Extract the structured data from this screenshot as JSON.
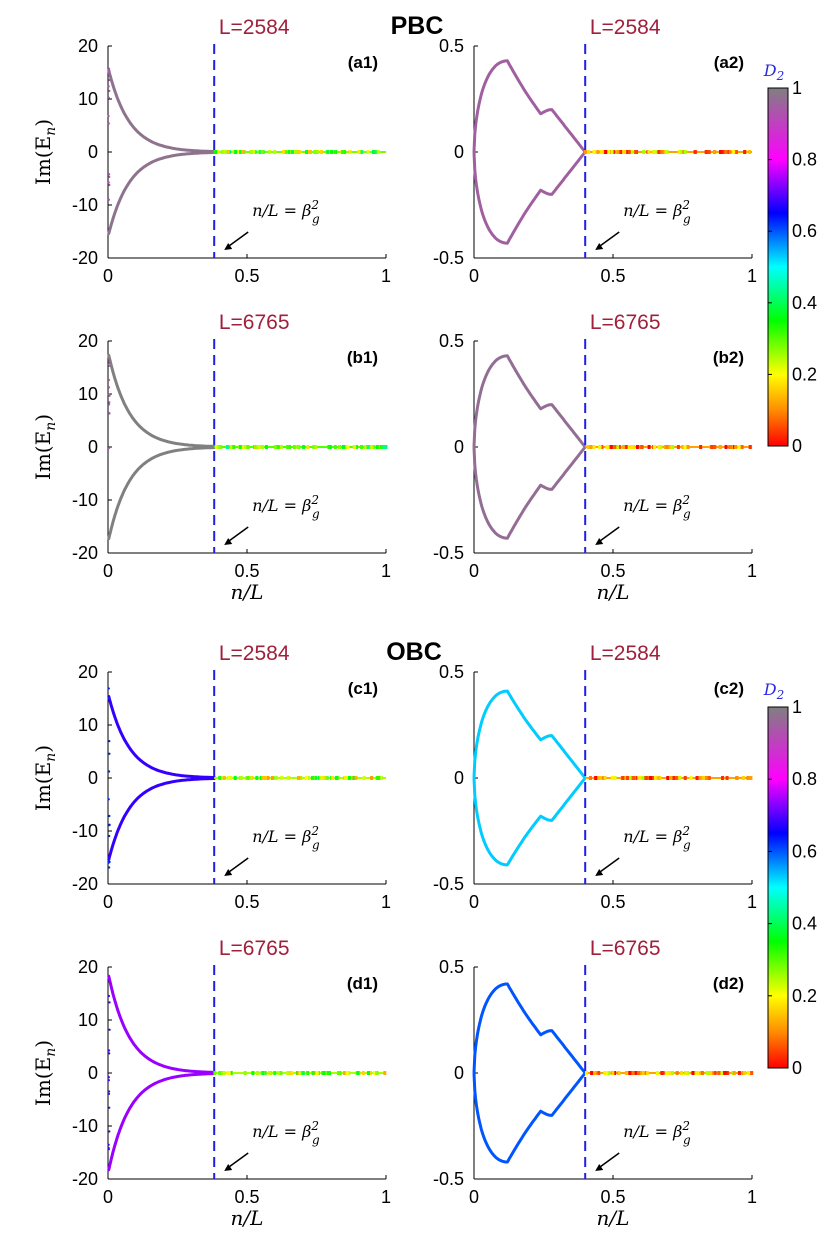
{
  "sections": [
    {
      "id": "pbc",
      "label": "PBC"
    },
    {
      "id": "obc",
      "label": "OBC"
    }
  ],
  "colorbar": {
    "label": "D",
    "label_sub": "2",
    "ticks": [
      "0",
      "0.2",
      "0.4",
      "0.6",
      "0.8",
      "1"
    ],
    "stops": [
      {
        "v": 0.0,
        "color": "#ff0000"
      },
      {
        "v": 0.1,
        "color": "#ff8c00"
      },
      {
        "v": 0.2,
        "color": "#ffff00"
      },
      {
        "v": 0.35,
        "color": "#00ff00"
      },
      {
        "v": 0.5,
        "color": "#00ffff"
      },
      {
        "v": 0.65,
        "color": "#0000ff"
      },
      {
        "v": 0.8,
        "color": "#ff00ff"
      },
      {
        "v": 1.0,
        "color": "#808080"
      }
    ]
  },
  "axis_labels": {
    "y1": "Im(E",
    "y1_sub": "n",
    "y1_close": ")",
    "x": "n/L"
  },
  "annotation": {
    "text": "n/L = β",
    "sup": "2",
    "sub": "g"
  },
  "chart_data": [
    {
      "id": "a1",
      "panel_label": "(a1)",
      "title": "L=2584",
      "type": "scatter",
      "xlim": [
        0,
        1
      ],
      "ylim": [
        -20,
        20
      ],
      "xticks": [
        "0",
        "0.5",
        "1"
      ],
      "yticks": [
        "20",
        "10",
        "0",
        "-10",
        "-20"
      ],
      "ylabel": "Im(E_n)",
      "xlabel": "",
      "vline_x": 0.382,
      "curve": "decay",
      "curve_amp": 16,
      "left_d2": 0.98,
      "right_line_d2": 0.28
    },
    {
      "id": "a2",
      "panel_label": "(a2)",
      "title": "L=2584",
      "type": "scatter",
      "xlim": [
        0,
        1
      ],
      "ylim": [
        -0.5,
        0.5
      ],
      "xticks": [
        "0",
        "0.5",
        "1"
      ],
      "yticks": [
        "0.5",
        "0",
        "-0.5"
      ],
      "ylabel": "",
      "xlabel": "",
      "vline_x": 0.4,
      "curve": "heart",
      "heart_amp": 0.43,
      "left_d2": 0.95,
      "right_line_d2": 0.12
    },
    {
      "id": "b1",
      "panel_label": "(b1)",
      "title": "L=6765",
      "type": "scatter",
      "xlim": [
        0,
        1
      ],
      "ylim": [
        -20,
        20
      ],
      "xticks": [
        "0",
        "0.5",
        "1"
      ],
      "yticks": [
        "20",
        "10",
        "0",
        "-10",
        "-20"
      ],
      "ylabel": "Im(E_n)",
      "xlabel": "n/L",
      "vline_x": 0.382,
      "curve": "decay",
      "curve_amp": 18,
      "left_d2": 1.0,
      "right_line_d2": 0.3
    },
    {
      "id": "b2",
      "panel_label": "(b2)",
      "title": "L=6765",
      "type": "scatter",
      "xlim": [
        0,
        1
      ],
      "ylim": [
        -0.5,
        0.5
      ],
      "xticks": [
        "0",
        "0.5",
        "1"
      ],
      "yticks": [
        "0.5",
        "0",
        "-0.5"
      ],
      "ylabel": "",
      "xlabel": "n/L",
      "vline_x": 0.4,
      "curve": "heart",
      "heart_amp": 0.43,
      "left_d2": 0.97,
      "right_line_d2": 0.12
    },
    {
      "id": "c1",
      "panel_label": "(c1)",
      "title": "L=2584",
      "type": "scatter",
      "xlim": [
        0,
        1
      ],
      "ylim": [
        -20,
        20
      ],
      "xticks": [
        "0",
        "0.5",
        "1"
      ],
      "yticks": [
        "20",
        "10",
        "0",
        "-10",
        "-20"
      ],
      "ylabel": "Im(E_n)",
      "xlabel": "",
      "vline_x": 0.382,
      "curve": "decay",
      "curve_amp": 16,
      "left_d2": 0.68,
      "right_line_d2": 0.25
    },
    {
      "id": "c2",
      "panel_label": "(c2)",
      "title": "L=2584",
      "type": "scatter",
      "xlim": [
        0,
        1
      ],
      "ylim": [
        -0.5,
        0.5
      ],
      "xticks": [
        "0",
        "0.5",
        "1"
      ],
      "yticks": [
        "0.5",
        "0",
        "-0.5"
      ],
      "ylabel": "",
      "xlabel": "",
      "vline_x": 0.4,
      "curve": "heart",
      "heart_amp": 0.41,
      "left_d2": 0.53,
      "right_line_d2": 0.12
    },
    {
      "id": "d1",
      "panel_label": "(d1)",
      "title": "L=6765",
      "type": "scatter",
      "xlim": [
        0,
        1
      ],
      "ylim": [
        -20,
        20
      ],
      "xticks": [
        "0",
        "0.5",
        "1"
      ],
      "yticks": [
        "20",
        "10",
        "0",
        "-10",
        "-20"
      ],
      "ylabel": "Im(E_n)",
      "xlabel": "n/L",
      "vline_x": 0.382,
      "curve": "decay",
      "curve_amp": 19,
      "left_d2": 0.74,
      "right_line_d2": 0.25
    },
    {
      "id": "d2",
      "panel_label": "(d2)",
      "title": "L=6765",
      "type": "scatter",
      "xlim": [
        0,
        1
      ],
      "ylim": [
        -0.5,
        0.5
      ],
      "xticks": [
        "0",
        "0.5",
        "1"
      ],
      "yticks": [
        "0.5",
        "0",
        "-0.5"
      ],
      "ylabel": "",
      "xlabel": "n/L",
      "vline_x": 0.4,
      "curve": "heart",
      "heart_amp": 0.42,
      "left_d2": 0.6,
      "right_line_d2": 0.12
    }
  ]
}
